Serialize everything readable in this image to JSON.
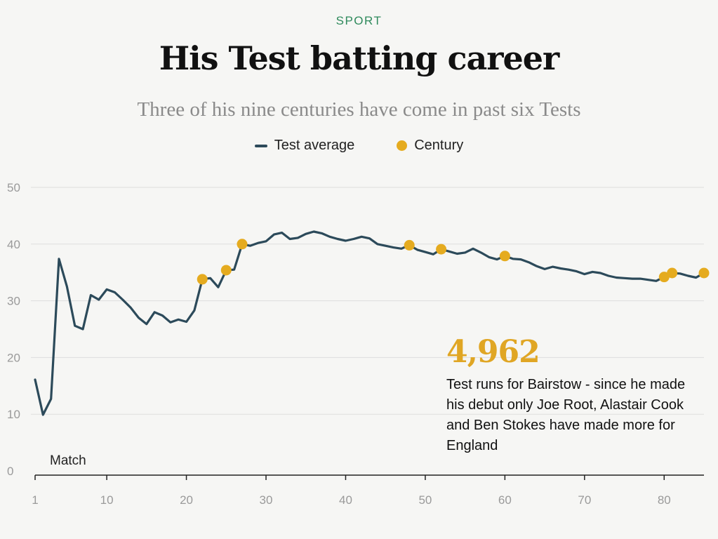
{
  "header": {
    "kicker": "SPORT",
    "title": "His Test batting career",
    "subtitle": "Three of his nine centuries have come in past six Tests"
  },
  "legend": {
    "line_label": "Test average",
    "dot_label": "Century"
  },
  "annotation": {
    "value": "4,962",
    "text": "Test runs for Bairstow - since he made his debut only Joe Root, Alastair Cook and Ben Stokes have made more for England"
  },
  "colors": {
    "line": "#2c4a5a",
    "century": "#e5ab1f",
    "accent": "#e0a624",
    "kicker": "#2f8a5c",
    "grid": "#dddddd"
  },
  "chart_data": {
    "type": "line",
    "xlabel": "Match",
    "ylabel": "",
    "xlim": [
      1,
      85
    ],
    "ylim": [
      0,
      50
    ],
    "y_ticks": [
      0,
      10,
      20,
      30,
      40,
      50
    ],
    "x_ticks": [
      "1",
      "10",
      "20",
      "30",
      "40",
      "50",
      "60",
      "70",
      "80"
    ],
    "x_tick_values": [
      1,
      10,
      20,
      30,
      40,
      50,
      60,
      70,
      80
    ],
    "grid": true,
    "legend_position": "top-center",
    "series": [
      {
        "name": "Test average",
        "type": "line",
        "x": [
          1,
          2,
          3,
          4,
          5,
          6,
          7,
          8,
          9,
          10,
          11,
          12,
          13,
          14,
          15,
          16,
          17,
          18,
          19,
          20,
          21,
          22,
          23,
          24,
          25,
          26,
          27,
          28,
          29,
          30,
          31,
          32,
          33,
          34,
          35,
          36,
          37,
          38,
          39,
          40,
          41,
          42,
          43,
          44,
          45,
          46,
          47,
          48,
          49,
          50,
          51,
          52,
          53,
          54,
          55,
          56,
          57,
          58,
          59,
          60,
          61,
          62,
          63,
          64,
          65,
          66,
          67,
          68,
          69,
          70,
          71,
          72,
          73,
          74,
          75,
          76,
          77,
          78,
          79,
          80,
          81,
          82,
          83,
          84,
          85
        ],
        "y": [
          16.1,
          9.9,
          12.7,
          37.4,
          32.5,
          25.6,
          25.0,
          31.0,
          30.2,
          32.0,
          31.5,
          30.2,
          28.8,
          27.0,
          25.9,
          28.0,
          27.4,
          26.2,
          26.7,
          26.3,
          28.3,
          33.8,
          34.0,
          32.4,
          35.4,
          35.5,
          40.0,
          39.7,
          40.2,
          40.5,
          41.7,
          42.0,
          40.9,
          41.1,
          41.8,
          42.2,
          41.9,
          41.3,
          40.9,
          40.6,
          40.9,
          41.3,
          41.0,
          40.0,
          39.7,
          39.4,
          39.2,
          39.8,
          39.0,
          38.6,
          38.2,
          39.1,
          38.7,
          38.3,
          38.5,
          39.2,
          38.5,
          37.7,
          37.3,
          37.9,
          37.4,
          37.3,
          36.8,
          36.1,
          35.6,
          36.0,
          35.7,
          35.5,
          35.2,
          34.7,
          35.1,
          34.9,
          34.4,
          34.1,
          34.0,
          33.9,
          33.9,
          33.7,
          33.5,
          34.2,
          34.9,
          34.8,
          34.4,
          34.1,
          34.9
        ]
      },
      {
        "name": "Century",
        "type": "scatter",
        "x": [
          22,
          25,
          27,
          48,
          52,
          60,
          80,
          81,
          85
        ],
        "y": [
          33.8,
          35.4,
          40.0,
          39.8,
          39.1,
          37.9,
          34.2,
          34.9,
          34.9
        ]
      }
    ]
  }
}
